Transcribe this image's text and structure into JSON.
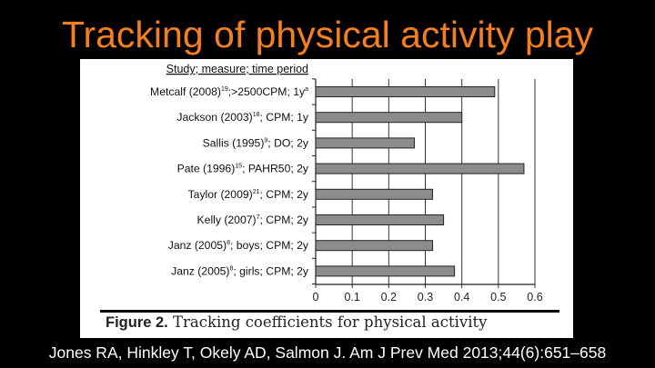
{
  "slide": {
    "title": "Tracking of physical activity play",
    "citation": "Jones RA, Hinkley T, Okely AD, Salmon J. Am J Prev Med 2013;44(6):651–658"
  },
  "figure": {
    "caption_label": "Figure 2.",
    "caption_text": "Tracking coefficients for physical activity"
  },
  "chart_data": {
    "type": "bar",
    "orientation": "horizontal",
    "category_header": "Study; measure; time period",
    "categories": [
      {
        "text": "Metcalf (2008)",
        "sup": "19",
        "rest": ";>2500CPM; 1y",
        "sup2": "a"
      },
      {
        "text": "Jackson (2003)",
        "sup": "18",
        "rest": "; CPM; 1y",
        "sup2": ""
      },
      {
        "text": "Sallis (1995)",
        "sup": "9",
        "rest": "; DO; 2y",
        "sup2": ""
      },
      {
        "text": "Pate (1996)",
        "sup": "15",
        "rest": "; PAHR50; 2y",
        "sup2": ""
      },
      {
        "text": "Taylor (2009)",
        "sup": "21",
        "rest": "; CPM; 2y",
        "sup2": ""
      },
      {
        "text": "Kelly (2007)",
        "sup": "7",
        "rest": "; CPM; 2y",
        "sup2": ""
      },
      {
        "text": "Janz (2005)",
        "sup": "8",
        "rest": "; boys; CPM; 2y",
        "sup2": ""
      },
      {
        "text": "Janz (2005)",
        "sup": "8",
        "rest": "; girls; CPM; 2y",
        "sup2": ""
      }
    ],
    "values": [
      0.49,
      0.4,
      0.27,
      0.57,
      0.32,
      0.35,
      0.32,
      0.38
    ],
    "xlim": [
      0,
      0.6
    ],
    "xticks": [
      "0",
      "0.1",
      "0.2",
      "0.3",
      "0.4",
      "0.5",
      "0.6"
    ],
    "grid": true,
    "bar_color": "#8c8c8c"
  }
}
